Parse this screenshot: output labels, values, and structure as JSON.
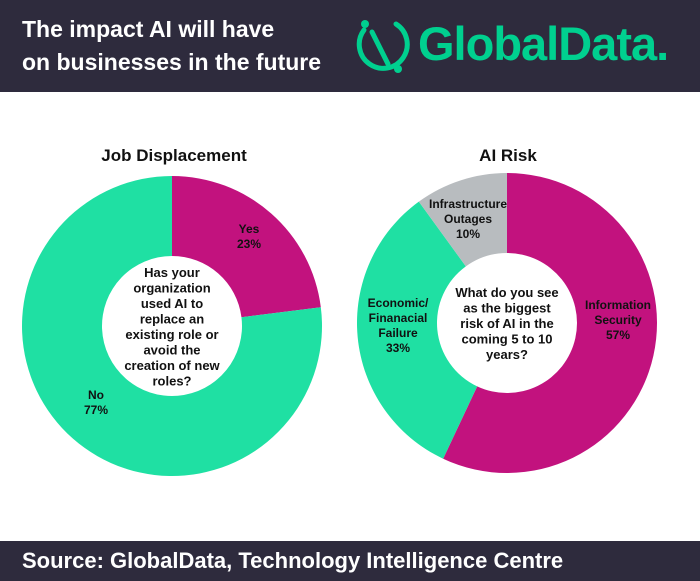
{
  "header": {
    "title_line1": "The impact AI will have",
    "title_line2": "on businesses in the future",
    "brand": "GlobalData.",
    "brand_color": "#00d08f",
    "background": "#2e2b3d"
  },
  "colors": {
    "magenta": "#c2127e",
    "green": "#1fe0a3",
    "gray": "#b8bcbf"
  },
  "chart_data": [
    {
      "type": "pie",
      "title": "Job Displacement",
      "center_text": [
        "Has your",
        "organization",
        "used AI to",
        "replace an",
        "existing role or",
        "avoid the",
        "creation of new",
        "roles?"
      ],
      "slices": [
        {
          "label": "Yes",
          "pct_label": "23%",
          "value": 23,
          "color": "#c2127e"
        },
        {
          "label": "No",
          "pct_label": "77%",
          "value": 77,
          "color": "#1fe0a3"
        }
      ]
    },
    {
      "type": "pie",
      "title": "AI Risk",
      "center_text": [
        "What do you see",
        "as the biggest",
        "risk of AI in the",
        "coming 5 to 10",
        "years?"
      ],
      "slices": [
        {
          "label": "Information Security",
          "label_lines": [
            "Information",
            "Security"
          ],
          "pct_label": "57%",
          "value": 57,
          "color": "#c2127e"
        },
        {
          "label": "Economic/ Finanacial Failure",
          "label_lines": [
            "Economic/",
            "Finanacial",
            "Failure"
          ],
          "pct_label": "33%",
          "value": 33,
          "color": "#1fe0a3"
        },
        {
          "label": "Infrastructure Outages",
          "label_lines": [
            "Infrastructure",
            "Outages"
          ],
          "pct_label": "10%",
          "value": 10,
          "color": "#b8bcbf"
        }
      ]
    }
  ],
  "footer": {
    "source": "Source: GlobalData, Technology Intelligence Centre"
  }
}
